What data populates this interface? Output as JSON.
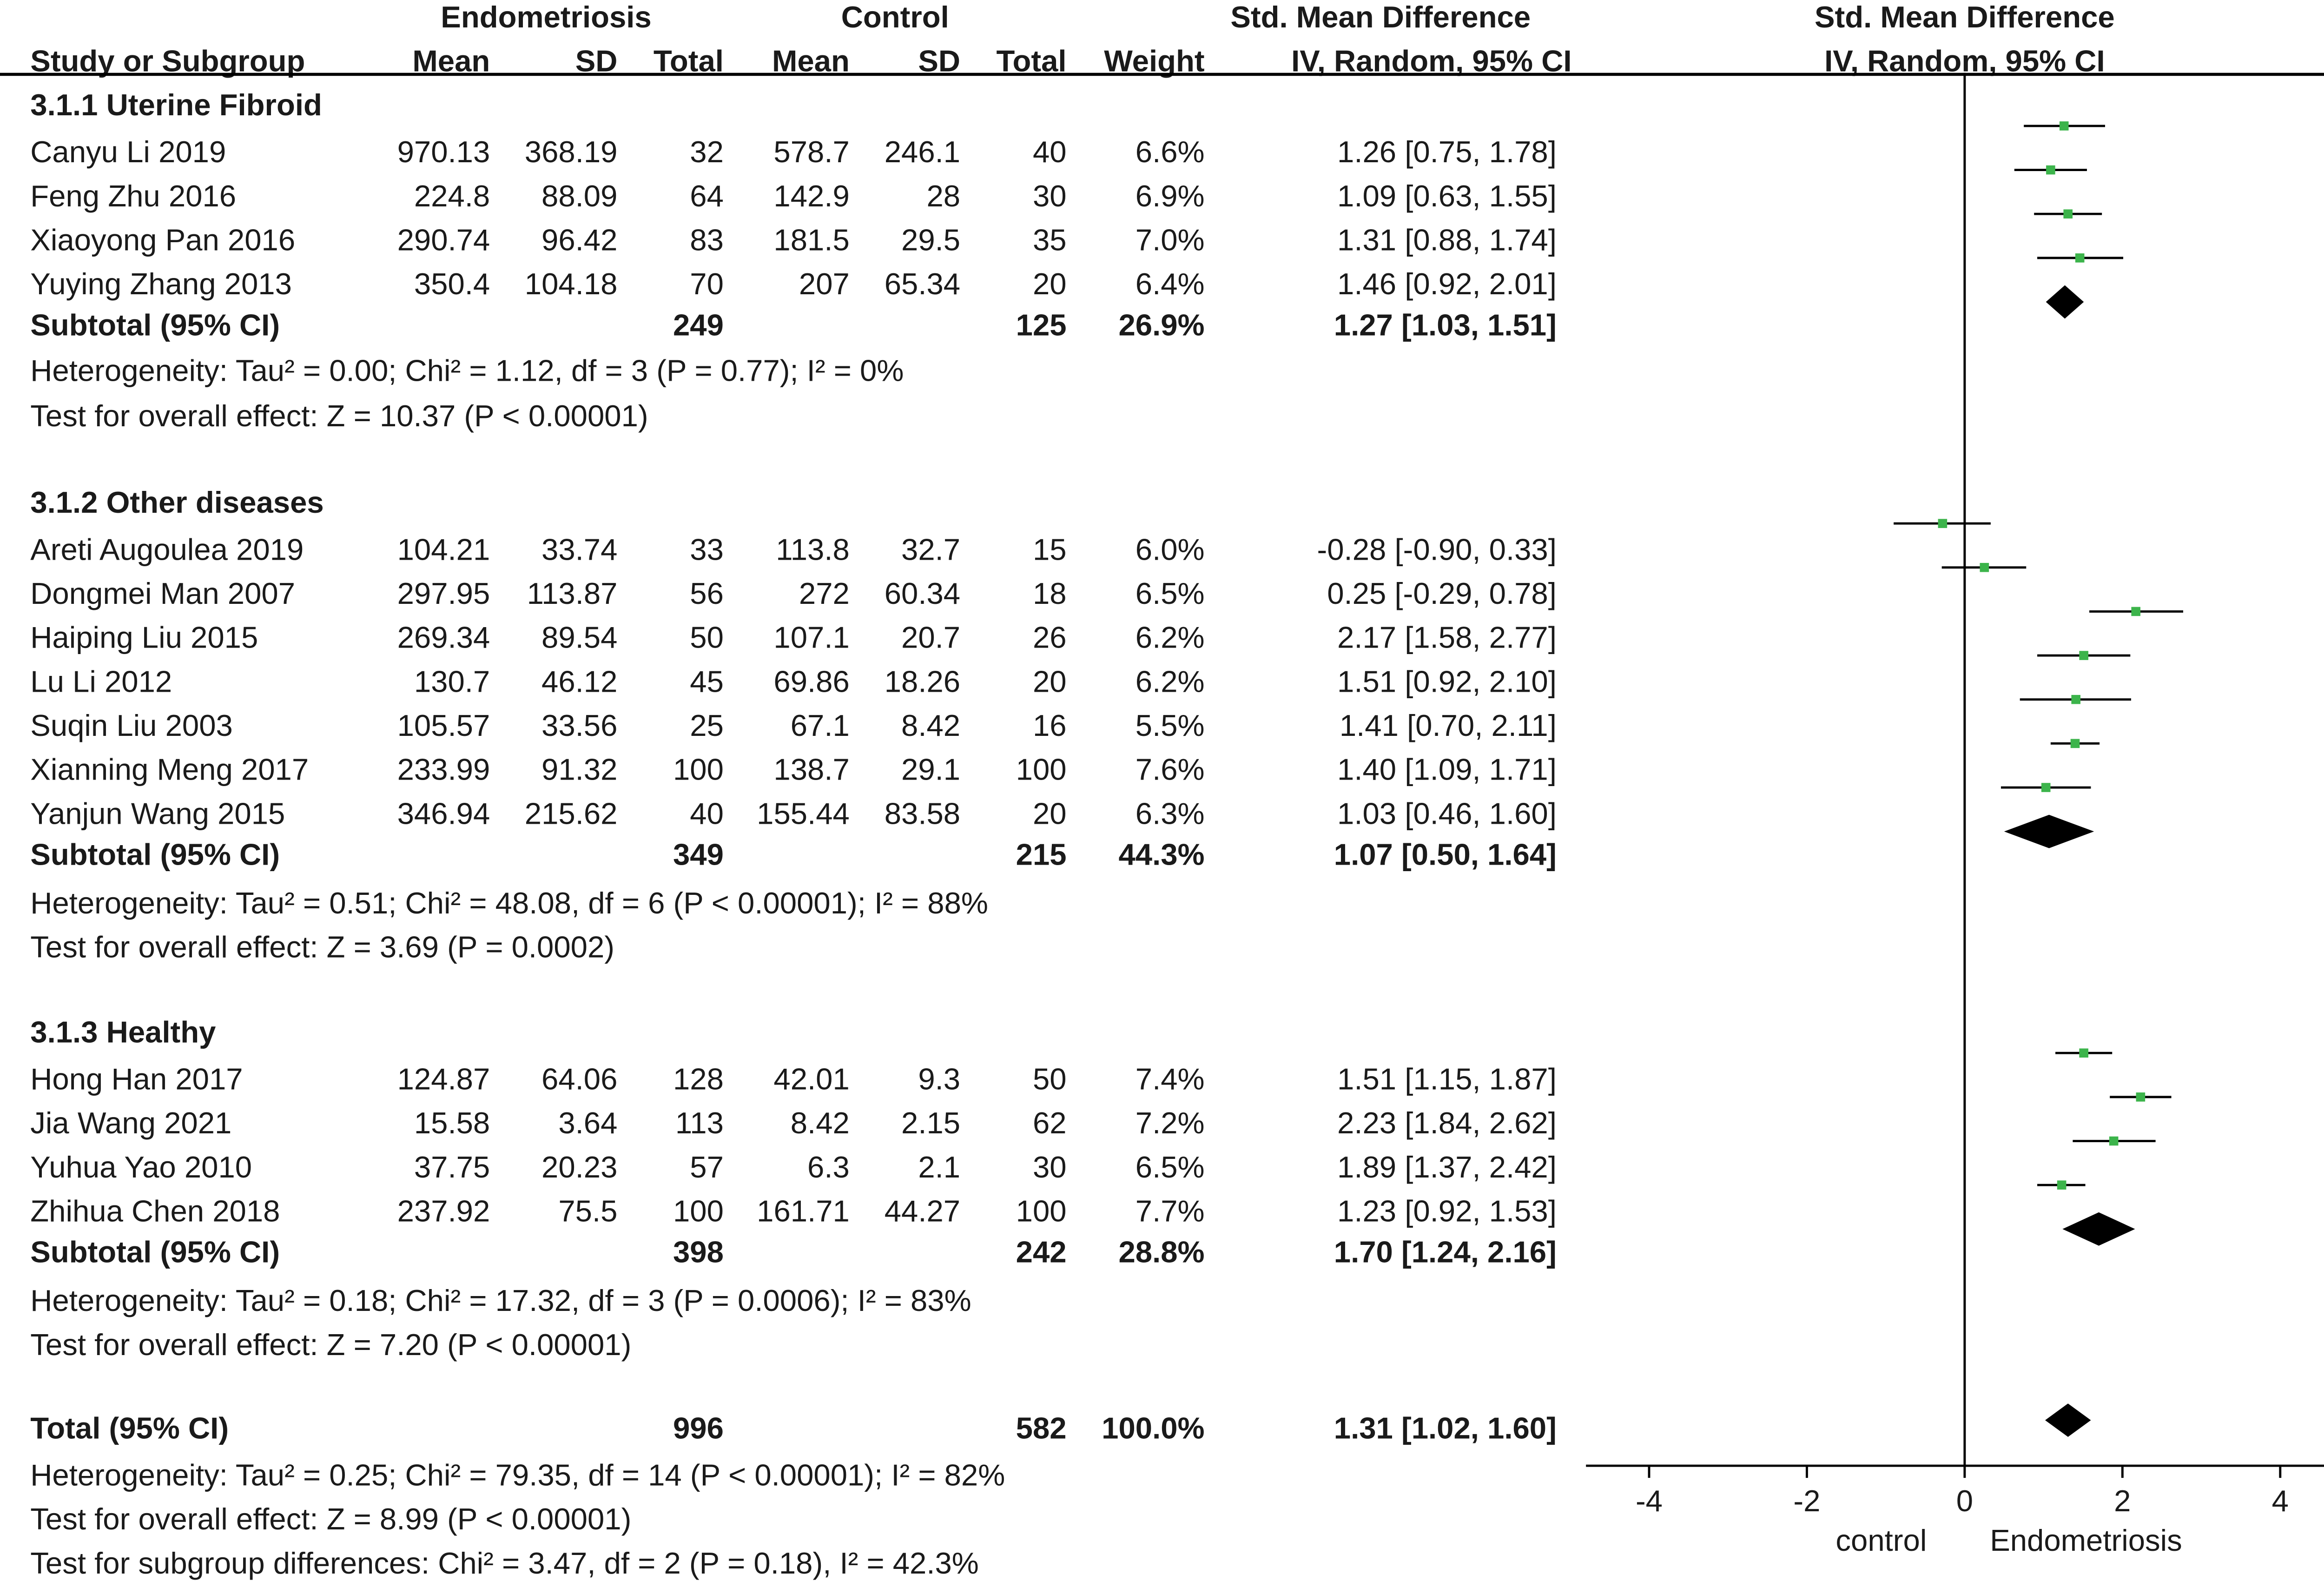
{
  "header": {
    "group1": "Endometriosis",
    "group2": "Control",
    "effect_title": "Std. Mean Difference",
    "plot_title": "Std. Mean Difference",
    "study_col": "Study or Subgroup",
    "mean": "Mean",
    "sd": "SD",
    "total": "Total",
    "weight": "Weight",
    "ci_method": "IV, Random, 95% CI",
    "plot_method": "IV, Random, 95% CI"
  },
  "subgroups": [
    {
      "title": "3.1.1 Uterine Fibroid",
      "studies": [
        {
          "name": "Canyu Li 2019",
          "m1": "970.13",
          "sd1": "368.19",
          "n1": "32",
          "m2": "578.7",
          "sd2": "246.1",
          "n2": "40",
          "weight": "6.6%",
          "ci": "1.26 [0.75, 1.78]"
        },
        {
          "name": "Feng Zhu 2016",
          "m1": "224.8",
          "sd1": "88.09",
          "n1": "64",
          "m2": "142.9",
          "sd2": "28",
          "n2": "30",
          "weight": "6.9%",
          "ci": "1.09 [0.63, 1.55]"
        },
        {
          "name": "Xiaoyong Pan 2016",
          "m1": "290.74",
          "sd1": "96.42",
          "n1": "83",
          "m2": "181.5",
          "sd2": "29.5",
          "n2": "35",
          "weight": "7.0%",
          "ci": "1.31 [0.88, 1.74]"
        },
        {
          "name": "Yuying Zhang 2013",
          "m1": "350.4",
          "sd1": "104.18",
          "n1": "70",
          "m2": "207",
          "sd2": "65.34",
          "n2": "20",
          "weight": "6.4%",
          "ci": "1.46 [0.92, 2.01]"
        }
      ],
      "subtotal": {
        "label": "Subtotal (95% CI)",
        "n1": "249",
        "n2": "125",
        "weight": "26.9%",
        "ci": "1.27 [1.03, 1.51]"
      },
      "heterogeneity": "Heterogeneity: Tau² = 0.00; Chi² = 1.12, df = 3 (P = 0.77); I² = 0%",
      "overall": "Test for overall effect: Z = 10.37 (P < 0.00001)"
    },
    {
      "title": "3.1.2 Other diseases",
      "studies": [
        {
          "name": "Areti Augoulea 2019",
          "m1": "104.21",
          "sd1": "33.74",
          "n1": "33",
          "m2": "113.8",
          "sd2": "32.7",
          "n2": "15",
          "weight": "6.0%",
          "ci": "-0.28 [-0.90, 0.33]"
        },
        {
          "name": "Dongmei Man 2007",
          "m1": "297.95",
          "sd1": "113.87",
          "n1": "56",
          "m2": "272",
          "sd2": "60.34",
          "n2": "18",
          "weight": "6.5%",
          "ci": "0.25 [-0.29, 0.78]"
        },
        {
          "name": "Haiping Liu 2015",
          "m1": "269.34",
          "sd1": "89.54",
          "n1": "50",
          "m2": "107.1",
          "sd2": "20.7",
          "n2": "26",
          "weight": "6.2%",
          "ci": "2.17 [1.58, 2.77]"
        },
        {
          "name": "Lu Li 2012",
          "m1": "130.7",
          "sd1": "46.12",
          "n1": "45",
          "m2": "69.86",
          "sd2": "18.26",
          "n2": "20",
          "weight": "6.2%",
          "ci": "1.51 [0.92, 2.10]"
        },
        {
          "name": "Suqin Liu 2003",
          "m1": "105.57",
          "sd1": "33.56",
          "n1": "25",
          "m2": "67.1",
          "sd2": "8.42",
          "n2": "16",
          "weight": "5.5%",
          "ci": "1.41 [0.70, 2.11]"
        },
        {
          "name": "Xianning Meng 2017",
          "m1": "233.99",
          "sd1": "91.32",
          "n1": "100",
          "m2": "138.7",
          "sd2": "29.1",
          "n2": "100",
          "weight": "7.6%",
          "ci": "1.40 [1.09, 1.71]"
        },
        {
          "name": "Yanjun Wang 2015",
          "m1": "346.94",
          "sd1": "215.62",
          "n1": "40",
          "m2": "155.44",
          "sd2": "83.58",
          "n2": "20",
          "weight": "6.3%",
          "ci": "1.03 [0.46, 1.60]"
        }
      ],
      "subtotal": {
        "label": "Subtotal (95% CI)",
        "n1": "349",
        "n2": "215",
        "weight": "44.3%",
        "ci": "1.07 [0.50, 1.64]"
      },
      "heterogeneity": "Heterogeneity: Tau² = 0.51; Chi² = 48.08, df = 6 (P < 0.00001); I² = 88%",
      "overall": "Test for overall effect: Z = 3.69 (P = 0.0002)"
    },
    {
      "title": "3.1.3 Healthy",
      "studies": [
        {
          "name": "Hong Han 2017",
          "m1": "124.87",
          "sd1": "64.06",
          "n1": "128",
          "m2": "42.01",
          "sd2": "9.3",
          "n2": "50",
          "weight": "7.4%",
          "ci": "1.51 [1.15, 1.87]"
        },
        {
          "name": "Jia Wang 2021",
          "m1": "15.58",
          "sd1": "3.64",
          "n1": "113",
          "m2": "8.42",
          "sd2": "2.15",
          "n2": "62",
          "weight": "7.2%",
          "ci": "2.23 [1.84, 2.62]"
        },
        {
          "name": "Yuhua Yao 2010",
          "m1": "37.75",
          "sd1": "20.23",
          "n1": "57",
          "m2": "6.3",
          "sd2": "2.1",
          "n2": "30",
          "weight": "6.5%",
          "ci": "1.89 [1.37, 2.42]"
        },
        {
          "name": "Zhihua Chen 2018",
          "m1": "237.92",
          "sd1": "75.5",
          "n1": "100",
          "m2": "161.71",
          "sd2": "44.27",
          "n2": "100",
          "weight": "7.7%",
          "ci": "1.23 [0.92, 1.53]"
        }
      ],
      "subtotal": {
        "label": "Subtotal (95% CI)",
        "n1": "398",
        "n2": "242",
        "weight": "28.8%",
        "ci": "1.70 [1.24, 2.16]"
      },
      "heterogeneity": "Heterogeneity: Tau² = 0.18; Chi² = 17.32, df = 3 (P = 0.0006); I² = 83%",
      "overall": "Test for overall effect: Z = 7.20 (P < 0.00001)"
    }
  ],
  "total": {
    "label": "Total (95% CI)",
    "n1": "996",
    "n2": "582",
    "weight": "100.0%",
    "ci": "1.31 [1.02, 1.60]",
    "heterogeneity": "Heterogeneity: Tau² = 0.25; Chi² = 79.35, df = 14 (P < 0.00001); I² = 82%",
    "overall": "Test for overall effect: Z = 8.99 (P < 0.00001)",
    "subgroup_diff": "Test for subgroup differences: Chi² = 3.47, df = 2 (P = 0.18), I² = 42.3%"
  },
  "axis": {
    "ticks": [
      "-4",
      "-2",
      "0",
      "2",
      "4"
    ],
    "left_label": "control",
    "right_label": "Endometriosis"
  },
  "colors": {
    "point": "#3cb44b",
    "line": "#000000",
    "diamond": "#000000"
  },
  "chart_data": {
    "type": "forest",
    "xlim": [
      -4.8,
      4.8
    ],
    "reference_line": 0,
    "tick_values": [
      -4,
      -2,
      0,
      2,
      4
    ],
    "studies": [
      {
        "name": "Canyu Li 2019",
        "est": 1.26,
        "lo": 0.75,
        "hi": 1.78
      },
      {
        "name": "Feng Zhu 2016",
        "est": 1.09,
        "lo": 0.63,
        "hi": 1.55
      },
      {
        "name": "Xiaoyong Pan 2016",
        "est": 1.31,
        "lo": 0.88,
        "hi": 1.74
      },
      {
        "name": "Yuying Zhang 2013",
        "est": 1.46,
        "lo": 0.92,
        "hi": 2.01
      },
      {
        "name": "Areti Augoulea 2019",
        "est": -0.28,
        "lo": -0.9,
        "hi": 0.33
      },
      {
        "name": "Dongmei Man 2007",
        "est": 0.25,
        "lo": -0.29,
        "hi": 0.78
      },
      {
        "name": "Haiping Liu 2015",
        "est": 2.17,
        "lo": 1.58,
        "hi": 2.77
      },
      {
        "name": "Lu Li 2012",
        "est": 1.51,
        "lo": 0.92,
        "hi": 2.1
      },
      {
        "name": "Suqin Liu 2003",
        "est": 1.41,
        "lo": 0.7,
        "hi": 2.11
      },
      {
        "name": "Xianning Meng 2017",
        "est": 1.4,
        "lo": 1.09,
        "hi": 1.71
      },
      {
        "name": "Yanjun Wang 2015",
        "est": 1.03,
        "lo": 0.46,
        "hi": 1.6
      },
      {
        "name": "Hong Han 2017",
        "est": 1.51,
        "lo": 1.15,
        "hi": 1.87
      },
      {
        "name": "Jia Wang 2021",
        "est": 2.23,
        "lo": 1.84,
        "hi": 2.62
      },
      {
        "name": "Yuhua Yao 2010",
        "est": 1.89,
        "lo": 1.37,
        "hi": 2.42
      },
      {
        "name": "Zhihua Chen 2018",
        "est": 1.23,
        "lo": 0.92,
        "hi": 1.53
      }
    ],
    "summaries": [
      {
        "name": "Subtotal 3.1.1",
        "est": 1.27,
        "lo": 1.03,
        "hi": 1.51
      },
      {
        "name": "Subtotal 3.1.2",
        "est": 1.07,
        "lo": 0.5,
        "hi": 1.64
      },
      {
        "name": "Subtotal 3.1.3",
        "est": 1.7,
        "lo": 1.24,
        "hi": 2.16
      },
      {
        "name": "Total",
        "est": 1.31,
        "lo": 1.02,
        "hi": 1.6
      }
    ]
  }
}
